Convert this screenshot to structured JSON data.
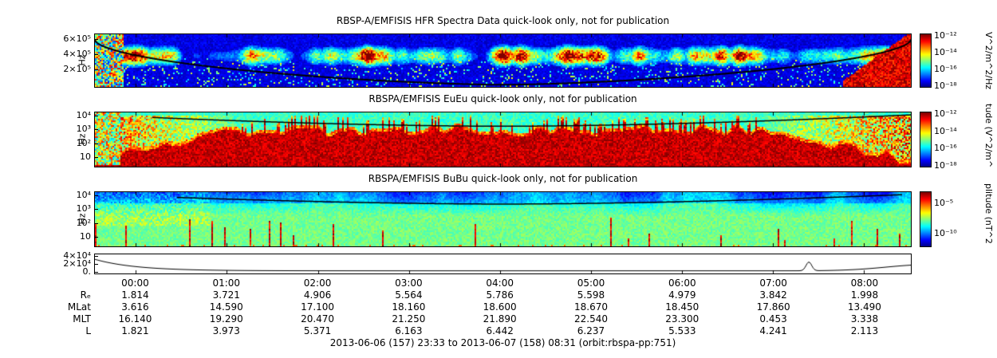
{
  "chart_data": [
    {
      "type": "heatmap",
      "id": "hfr-spectra",
      "title": "RBSP-A/EMFISIS  HFR Spectra Data quick-look only, not for publication",
      "ylabel": "Hz",
      "y_scale": "linear",
      "yticks": [
        "6×10⁵",
        "4×10⁵",
        "2×10⁵"
      ],
      "colorbar": {
        "label": "V^2/m^2/Hz",
        "ticks": [
          "10⁻¹²",
          "10⁻¹⁴",
          "10⁻¹⁶",
          "10⁻¹⁸"
        ]
      },
      "overlay": "black U-shaped trace from top-left dipping to panel bottom mid-interval and rising again at right",
      "description": "Blue background spectrogram with banded red/orange/yellow emission patches near 2-4×10^5 Hz across the interval, mottled column at far left, intense red region at lower right near perigee"
    },
    {
      "type": "heatmap",
      "id": "euEu",
      "title": "RBSPA/EMFISIS  EuEu quick-look only, not for publication",
      "ylabel": "Hz",
      "y_scale": "log",
      "yticks": [
        "10⁴",
        "10³",
        "10²",
        "10"
      ],
      "colorbar": {
        "label": "tude (V^2/m^",
        "ticks": [
          "10⁻¹²",
          "10⁻¹⁴",
          "10⁻¹⁶",
          "10⁻¹⁸"
        ]
      },
      "overlay": "black shallow U-shaped fce trace near the top of the panel",
      "description": "Green upper band with intense saturated red broadband emission filling the lower two thirds through the central hours, yellow/orange mottled regions near both ends"
    },
    {
      "type": "heatmap",
      "id": "buBu",
      "title": "RBSPA/EMFISIS  BuBu quick-look only, not for publication",
      "ylabel": "Hz",
      "y_scale": "log",
      "yticks": [
        "10⁴",
        "10³",
        "10²",
        "10"
      ],
      "colorbar": {
        "label": "plitude (nT^2",
        "ticks": [
          "10⁻⁵",
          "10⁻¹⁰"
        ]
      },
      "overlay": "black shallow U-shaped fce trace near the top of the panel",
      "description": "Mostly green spectrogram with cyan/blue patches in the upper region and sparse thin vertical red spikes rising from the bottom edge"
    },
    {
      "type": "line",
      "id": "aux-line",
      "yticks": [
        "4×10⁴",
        "2×10⁴",
        "0."
      ],
      "description": "Thin black curve: high at left edge, decays quickly to near zero, flat through the middle, small sharp bump near 07:00 and gentle rise at the right end"
    }
  ],
  "time_axis": {
    "ticks": [
      "00:00",
      "01:00",
      "02:00",
      "03:00",
      "04:00",
      "05:00",
      "06:00",
      "07:00",
      "08:00"
    ]
  },
  "ephemeris": {
    "rows": [
      {
        "label": "Rₑ",
        "values": [
          "1.814",
          "3.721",
          "4.906",
          "5.564",
          "5.786",
          "5.598",
          "4.979",
          "3.842",
          "1.998"
        ]
      },
      {
        "label": "MLat",
        "values": [
          "3.616",
          "14.590",
          "17.100",
          "18.160",
          "18.600",
          "18.670",
          "18.450",
          "17.860",
          "13.490"
        ]
      },
      {
        "label": "MLT",
        "values": [
          "16.140",
          "19.290",
          "20.470",
          "21.250",
          "21.890",
          "22.540",
          "23.300",
          "0.453",
          "3.338"
        ]
      },
      {
        "label": "L",
        "values": [
          "1.821",
          "3.973",
          "5.371",
          "6.163",
          "6.442",
          "6.237",
          "5.533",
          "4.241",
          "2.113"
        ]
      }
    ]
  },
  "caption": "2013-06-06 (157) 23:33 to 2013-06-07 (158) 08:31 (orbit:rbspa-pp:751)"
}
